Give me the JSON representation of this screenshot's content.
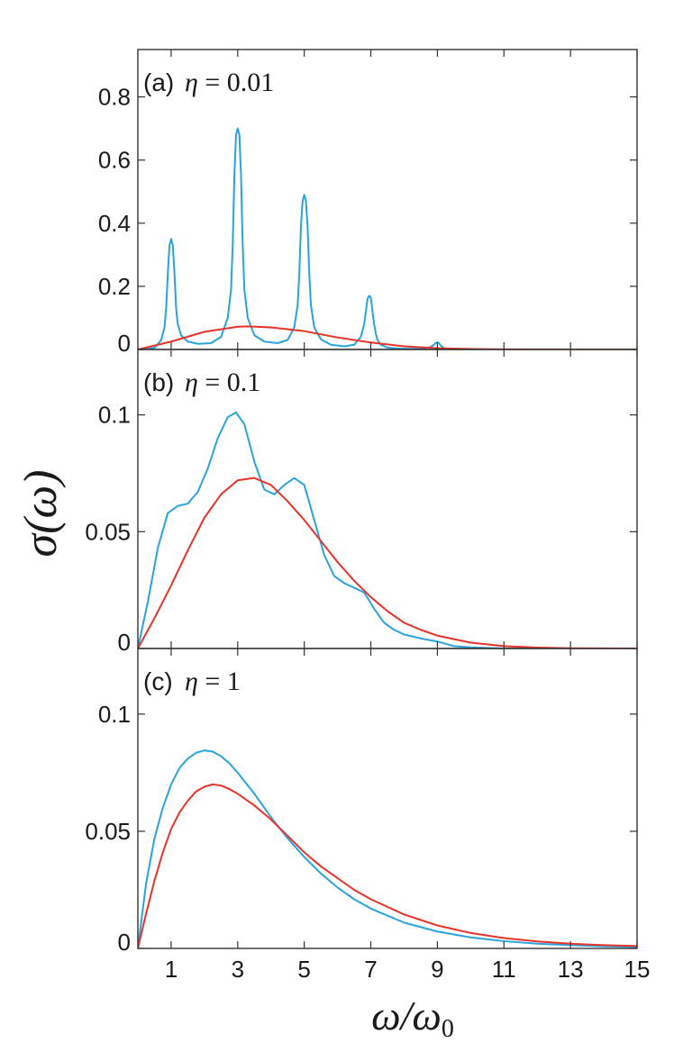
{
  "chart_data": [
    {
      "type": "line",
      "panel_label": "(a)",
      "eta_symbol": "η",
      "eta_text": " = 0.01",
      "xlim": [
        0,
        15
      ],
      "ylim": [
        0,
        0.95
      ],
      "yticks": [
        0,
        0.2,
        0.4,
        0.6,
        0.8
      ],
      "ytick_labels": [
        "0",
        "0.2",
        "0.4",
        "0.6",
        "0.8"
      ],
      "colors": {
        "blue": "#29a3dc",
        "red": "#e8332a"
      },
      "series": [
        {
          "color": "blue",
          "x": [
            0,
            0.5,
            0.7,
            0.8,
            0.85,
            0.9,
            0.95,
            1,
            1.05,
            1.1,
            1.15,
            1.2,
            1.3,
            1.5,
            1.8,
            2.2,
            2.5,
            2.7,
            2.8,
            2.85,
            2.9,
            2.95,
            3,
            3.05,
            3.1,
            3.15,
            3.2,
            3.3,
            3.5,
            3.8,
            4.2,
            4.5,
            4.7,
            4.8,
            4.85,
            4.9,
            4.95,
            5,
            5.05,
            5.1,
            5.15,
            5.2,
            5.3,
            5.5,
            5.8,
            6.2,
            6.5,
            6.7,
            6.8,
            6.85,
            6.9,
            6.95,
            7,
            7.05,
            7.1,
            7.15,
            7.2,
            7.3,
            7.5,
            7.8,
            8.2,
            8.6,
            8.8,
            8.9,
            8.95,
            9,
            9.05,
            9.1,
            9.2,
            9.4,
            10,
            11,
            15
          ],
          "y": [
            0,
            0.005,
            0.03,
            0.07,
            0.13,
            0.24,
            0.33,
            0.35,
            0.33,
            0.24,
            0.13,
            0.08,
            0.045,
            0.025,
            0.018,
            0.02,
            0.04,
            0.1,
            0.19,
            0.33,
            0.55,
            0.68,
            0.7,
            0.68,
            0.55,
            0.33,
            0.19,
            0.1,
            0.045,
            0.025,
            0.02,
            0.03,
            0.07,
            0.14,
            0.24,
            0.39,
            0.47,
            0.49,
            0.47,
            0.39,
            0.24,
            0.14,
            0.07,
            0.032,
            0.015,
            0.01,
            0.015,
            0.04,
            0.08,
            0.12,
            0.16,
            0.17,
            0.165,
            0.12,
            0.08,
            0.05,
            0.03,
            0.015,
            0.006,
            0.003,
            0.002,
            0.003,
            0.008,
            0.015,
            0.021,
            0.022,
            0.02,
            0.012,
            0.004,
            0.001,
            0,
            0,
            0
          ]
        },
        {
          "color": "red",
          "x": [
            0,
            1,
            2,
            3,
            3.3,
            4,
            5,
            6,
            7,
            8,
            9,
            10,
            11,
            13,
            15
          ],
          "y": [
            0,
            0.025,
            0.056,
            0.072,
            0.073,
            0.07,
            0.058,
            0.038,
            0.022,
            0.01,
            0.004,
            0.0015,
            0.0005,
            0.0001,
            0
          ]
        }
      ]
    },
    {
      "type": "line",
      "panel_label": "(b)",
      "eta_symbol": "η",
      "eta_text": " = 0.1",
      "xlim": [
        0,
        15
      ],
      "ylim": [
        0,
        0.128
      ],
      "yticks": [
        0,
        0.05,
        0.1
      ],
      "ytick_labels": [
        "0",
        "0.05",
        "0.1"
      ],
      "colors": {
        "blue": "#29a3dc",
        "red": "#e8332a"
      },
      "series": [
        {
          "color": "blue",
          "x": [
            0,
            0.3,
            0.6,
            0.9,
            1.2,
            1.5,
            1.8,
            2.1,
            2.4,
            2.7,
            2.95,
            3.2,
            3.5,
            3.8,
            4.1,
            4.4,
            4.7,
            5,
            5.3,
            5.6,
            5.9,
            6.2,
            6.5,
            6.8,
            7.1,
            7.4,
            7.7,
            8,
            8.3,
            8.6,
            9,
            9.5,
            10,
            11,
            12,
            13,
            15
          ],
          "y": [
            0,
            0.02,
            0.043,
            0.058,
            0.061,
            0.062,
            0.067,
            0.077,
            0.09,
            0.099,
            0.101,
            0.096,
            0.08,
            0.068,
            0.066,
            0.07,
            0.073,
            0.07,
            0.055,
            0.04,
            0.031,
            0.028,
            0.026,
            0.024,
            0.017,
            0.011,
            0.008,
            0.006,
            0.005,
            0.004,
            0.003,
            0.001,
            0.0005,
            0,
            0,
            0,
            0
          ]
        },
        {
          "color": "red",
          "x": [
            0,
            0.5,
            1,
            1.5,
            2,
            2.5,
            3,
            3.5,
            4,
            4.5,
            5,
            5.5,
            6,
            6.5,
            7,
            7.5,
            8,
            8.5,
            9,
            10,
            11,
            12,
            13,
            15
          ],
          "y": [
            0,
            0.013,
            0.027,
            0.042,
            0.056,
            0.066,
            0.072,
            0.073,
            0.07,
            0.063,
            0.055,
            0.046,
            0.037,
            0.029,
            0.022,
            0.016,
            0.011,
            0.008,
            0.0055,
            0.0025,
            0.001,
            0.0004,
            0.0001,
            0
          ]
        }
      ]
    },
    {
      "type": "line",
      "panel_label": "(c)",
      "eta_symbol": "η",
      "eta_text": " = 1",
      "xlim": [
        0,
        15
      ],
      "ylim": [
        0,
        0.128
      ],
      "yticks": [
        0,
        0.05,
        0.1
      ],
      "ytick_labels": [
        "0",
        "0.05",
        "0.1"
      ],
      "xticks": [
        1,
        3,
        5,
        7,
        9,
        11,
        13,
        15
      ],
      "xtick_labels": [
        "1",
        "3",
        "5",
        "7",
        "9",
        "11",
        "13",
        "15"
      ],
      "xlabel": "ω/ω",
      "xlabel_sub": "0",
      "ylabel": "σ(ω)",
      "colors": {
        "blue": "#29a3dc",
        "red": "#e8332a"
      },
      "series": [
        {
          "color": "blue",
          "x": [
            0,
            0.25,
            0.5,
            0.75,
            1,
            1.25,
            1.5,
            1.75,
            2,
            2.25,
            2.5,
            2.75,
            3,
            3.5,
            4,
            4.5,
            5,
            5.5,
            6,
            6.5,
            7,
            8,
            9,
            10,
            11,
            12,
            13,
            14,
            15
          ],
          "y": [
            0,
            0.028,
            0.047,
            0.06,
            0.07,
            0.077,
            0.081,
            0.0835,
            0.0845,
            0.084,
            0.082,
            0.079,
            0.075,
            0.066,
            0.056,
            0.047,
            0.039,
            0.032,
            0.026,
            0.021,
            0.017,
            0.011,
            0.0072,
            0.0047,
            0.0031,
            0.002,
            0.0014,
            0.0009,
            0.0006
          ]
        },
        {
          "color": "red",
          "x": [
            0,
            0.25,
            0.5,
            0.75,
            1,
            1.25,
            1.5,
            1.75,
            2,
            2.25,
            2.5,
            2.75,
            3,
            3.5,
            4,
            4.5,
            5,
            5.5,
            6,
            6.5,
            7,
            8,
            9,
            10,
            11,
            12,
            13,
            14,
            15
          ],
          "y": [
            0,
            0.015,
            0.029,
            0.041,
            0.051,
            0.058,
            0.063,
            0.067,
            0.069,
            0.07,
            0.0695,
            0.068,
            0.066,
            0.061,
            0.055,
            0.048,
            0.041,
            0.035,
            0.03,
            0.025,
            0.021,
            0.0145,
            0.0098,
            0.0066,
            0.0044,
            0.003,
            0.002,
            0.0014,
            0.001
          ]
        }
      ]
    }
  ]
}
